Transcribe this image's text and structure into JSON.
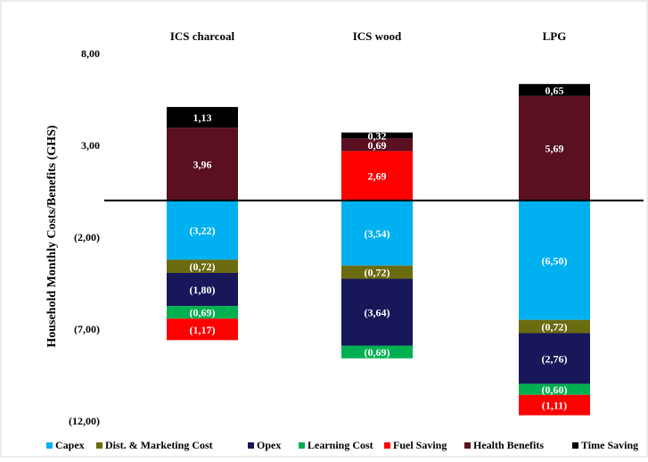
{
  "chart_data": {
    "type": "bar",
    "stacked": true,
    "categories": [
      "ICS charcoal",
      "ICS wood",
      "LPG"
    ],
    "ylabel": "Household Monthly Costs/Benefits (GHS)",
    "ylim": [
      -12,
      8
    ],
    "yticks": [
      8,
      3,
      -2,
      -7,
      -12
    ],
    "ytick_labels": [
      "8,00",
      "3,00",
      "(2,00)",
      "(7,00)",
      "(12,00)"
    ],
    "grid": false,
    "legend_position": "bottom",
    "series": [
      {
        "name": "Capex",
        "color": "#00b0f0",
        "label_color": "#ffffff",
        "values": [
          -3.22,
          -3.54,
          -6.5
        ],
        "labels": [
          "(3,22)",
          "(3,54)",
          "(6,50)"
        ]
      },
      {
        "name": "Dist. & Marketing Cost",
        "color": "#6b6b10",
        "label_color": "#ffffff",
        "values": [
          -0.72,
          -0.72,
          -0.72
        ],
        "labels": [
          "(0,72)",
          "(0,72)",
          "(0,72)"
        ]
      },
      {
        "name": "Opex",
        "color": "#17175a",
        "label_color": "#ffffff",
        "values": [
          -1.8,
          -3.64,
          -2.76
        ],
        "labels": [
          "(1,80)",
          "(3,64)",
          "(2,76)"
        ]
      },
      {
        "name": "Learning Cost",
        "color": "#00b050",
        "label_color": "#ffffff",
        "values": [
          -0.69,
          -0.69,
          -0.6
        ],
        "labels": [
          "(0,69)",
          "(0,69)",
          "(0,60)"
        ]
      },
      {
        "name": "Fuel Saving",
        "color": "#ff0000",
        "label_color": "#ffffff",
        "values": [
          -1.17,
          2.69,
          -1.11
        ],
        "labels": [
          "(1,17)",
          "2,69",
          "(1,11)"
        ]
      },
      {
        "name": "Health Benefits",
        "color": "#5a1020",
        "label_color": "#ffffff",
        "values": [
          3.96,
          0.69,
          5.69
        ],
        "labels": [
          "3,96",
          "0,69",
          "5,69"
        ]
      },
      {
        "name": "Time Saving",
        "color": "#000000",
        "label_color": "#ffffff",
        "values": [
          1.13,
          0.32,
          0.65
        ],
        "labels": [
          "1,13",
          "0,32",
          "0,65"
        ]
      }
    ]
  }
}
